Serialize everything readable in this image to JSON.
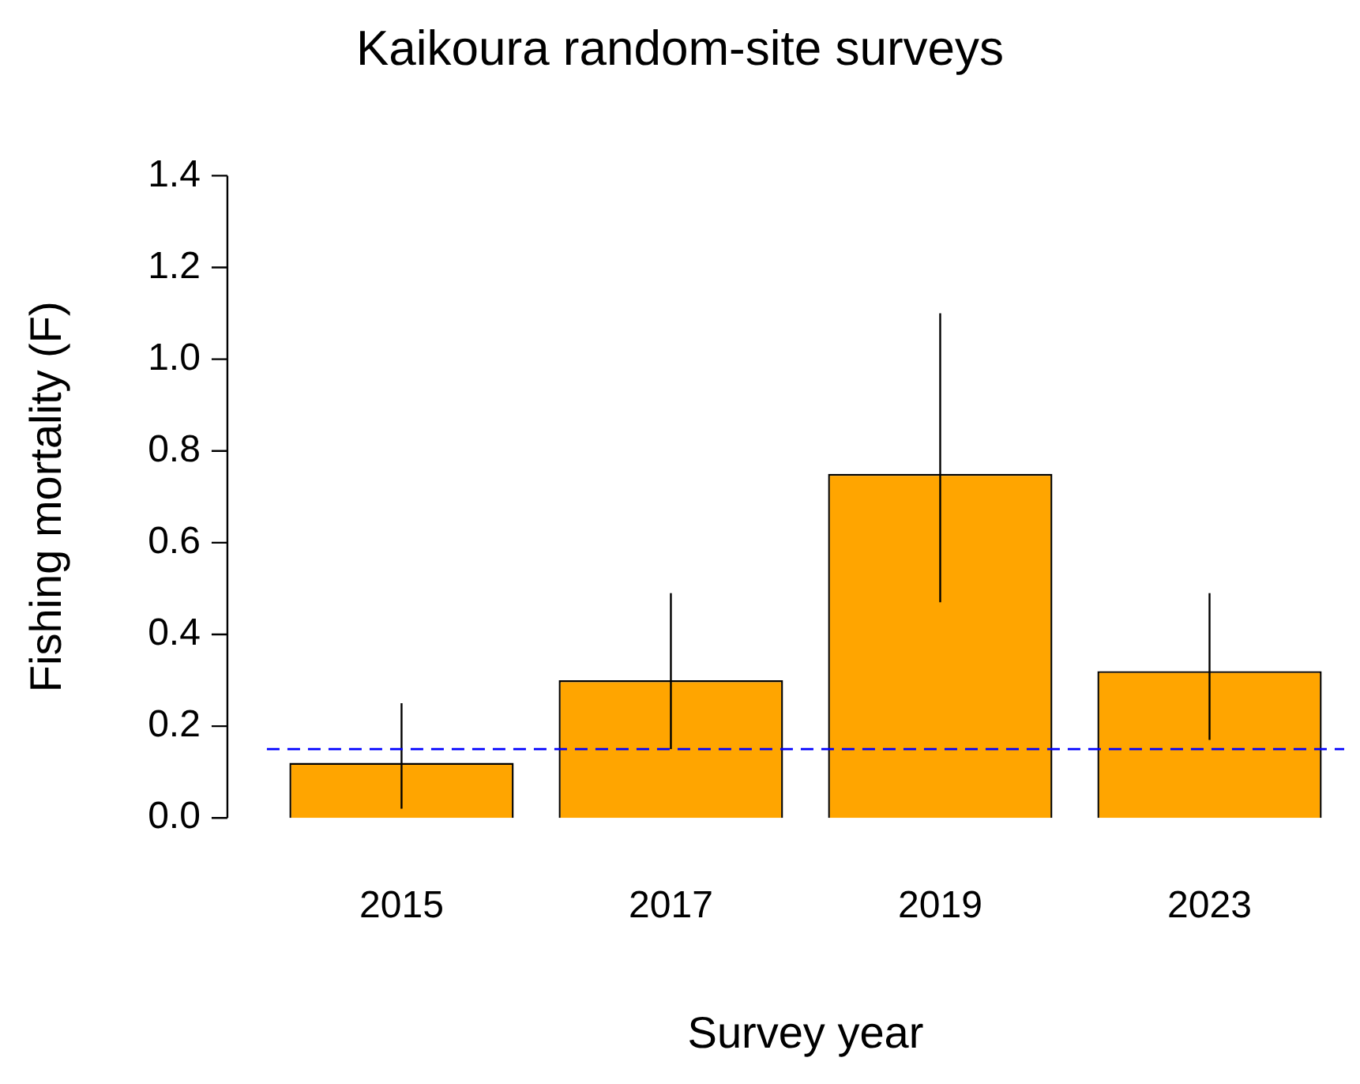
{
  "chart_data": {
    "type": "bar",
    "title": "Kaikoura random-site surveys",
    "xlabel": "Survey year",
    "ylabel": "Fishing mortality (F)",
    "categories": [
      "2015",
      "2017",
      "2019",
      "2023"
    ],
    "values": [
      0.12,
      0.3,
      0.75,
      0.32
    ],
    "errors": [
      [
        0.02,
        0.25
      ],
      [
        0.15,
        0.49
      ],
      [
        0.47,
        1.1
      ],
      [
        0.17,
        0.49
      ]
    ],
    "color": "#ffa500",
    "ylim": [
      0,
      1.4
    ],
    "yticks": [
      {
        "value": 0,
        "label": "0.0"
      },
      {
        "value": 0.2,
        "label": "0.2"
      },
      {
        "value": 0.4,
        "label": "0.4"
      },
      {
        "value": 0.6,
        "label": "0.6"
      },
      {
        "value": 0.8,
        "label": "0.8"
      },
      {
        "value": 1.0,
        "label": "1.0"
      },
      {
        "value": 1.2,
        "label": "1.2"
      },
      {
        "value": 1.4,
        "label": "1.4"
      }
    ],
    "ref_lines": [
      {
        "axis": "y",
        "value": 0.15,
        "color": "#0000ff",
        "line_style": "dashed"
      }
    ],
    "grid": false,
    "legend": false
  }
}
